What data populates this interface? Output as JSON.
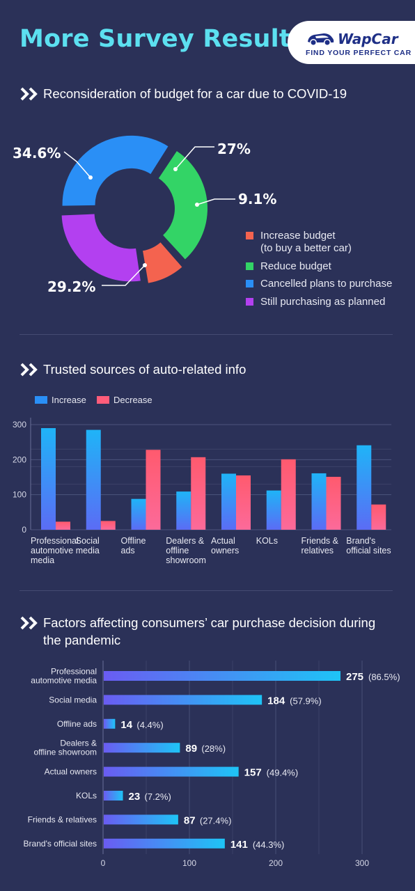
{
  "header": {
    "title": "More Survey Results",
    "logo_brand": "WapCar",
    "logo_tagline": "FIND YOUR PERFECT CAR"
  },
  "chart_data": [
    {
      "type": "pie",
      "title": "Reconsideration of budget for a car due to COVID-19",
      "slices": [
        {
          "label": "Increase budget (to buy a better car)",
          "label_lines": [
            "Increase budget",
            "(to buy a better car)"
          ],
          "value": 9.1,
          "display": "9.1%",
          "color": "#f4634f"
        },
        {
          "label": "Reduce budget",
          "label_lines": [
            "Reduce budget"
          ],
          "value": 29.2,
          "display": "29.2%",
          "color": "#33d466"
        },
        {
          "label": "Cancelled plans to purchase",
          "label_lines": [
            "Cancelled plans to purchase"
          ],
          "value": 34.6,
          "display": "34.6%",
          "color": "#2a8ff6"
        },
        {
          "label": "Still purchasing as planned",
          "label_lines": [
            "Still purchasing as planned"
          ],
          "value": 27,
          "display": "27%",
          "color": "#b340f0"
        }
      ]
    },
    {
      "type": "bar",
      "title": "Trusted sources of auto-related info",
      "categories": [
        [
          "Professional",
          "automotive",
          "media"
        ],
        [
          "Social",
          "media"
        ],
        [
          "Offline",
          "ads"
        ],
        [
          "Dealers &",
          "offline",
          "showroom"
        ],
        [
          "Actual",
          "owners"
        ],
        [
          "KOLs"
        ],
        [
          "Friends &",
          "relatives"
        ],
        [
          "Brand's",
          "official sites"
        ]
      ],
      "series": [
        {
          "name": "Increase",
          "values": [
            290,
            285,
            88,
            109,
            160,
            112,
            161,
            241
          ],
          "color": "#2a8ff6"
        },
        {
          "name": "Decrease",
          "values": [
            23,
            25,
            228,
            207,
            155,
            201,
            151,
            72
          ],
          "color": "#ff5c7a"
        }
      ],
      "ylim": [
        0,
        300
      ],
      "yticks": [
        0,
        100,
        200,
        300
      ],
      "legend": "top-left",
      "grid": true
    },
    {
      "type": "bar",
      "orientation": "horizontal",
      "title": "Factors affecting consumers’ car purchase decision during the pandemic",
      "title_lines": [
        "Factors affecting consumers’ car purchase decision during",
        "the pandemic"
      ],
      "categories": [
        [
          "Professional",
          "automotive media"
        ],
        [
          "Social media"
        ],
        [
          "Offline ads"
        ],
        [
          "Dealers &",
          "offline showroom"
        ],
        [
          "Actual owners"
        ],
        [
          "KOLs"
        ],
        [
          "Friends & relatives"
        ],
        [
          "Brand's official sites"
        ]
      ],
      "values": [
        275,
        184,
        14,
        89,
        157,
        23,
        87,
        141
      ],
      "percents": [
        "(86.5%)",
        "(57.9%)",
        "(4.4%)",
        "(28%)",
        "(49.4%)",
        "(7.2%)",
        "(27.4%)",
        "(44.3%)"
      ],
      "xlim": [
        0,
        300
      ],
      "xticks": [
        0,
        100,
        200,
        300
      ],
      "grid": true
    }
  ]
}
